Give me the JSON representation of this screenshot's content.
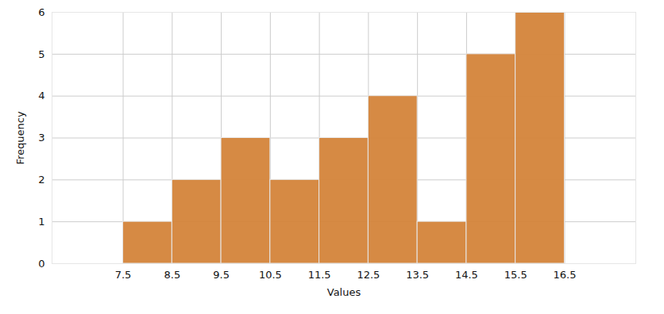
{
  "chart_data": {
    "type": "histogram",
    "bins": [
      7.5,
      8.5,
      9.5,
      10.5,
      11.5,
      12.5,
      13.5,
      14.5,
      15.5,
      16.5
    ],
    "values": [
      1,
      2,
      3,
      2,
      3,
      4,
      1,
      5,
      6
    ],
    "color": "#d4843a",
    "x_label": "Values",
    "y_label": "Frequency",
    "xlim": [
      6.05,
      17.95
    ],
    "xticks": [
      7.5,
      8.5,
      9.5,
      10.5,
      11.5,
      12.5,
      13.5,
      14.5,
      15.5,
      16.5
    ],
    "ylim": [
      0,
      6
    ],
    "yticks": [
      0,
      1,
      2,
      3,
      4,
      5,
      6
    ],
    "grid": true
  }
}
